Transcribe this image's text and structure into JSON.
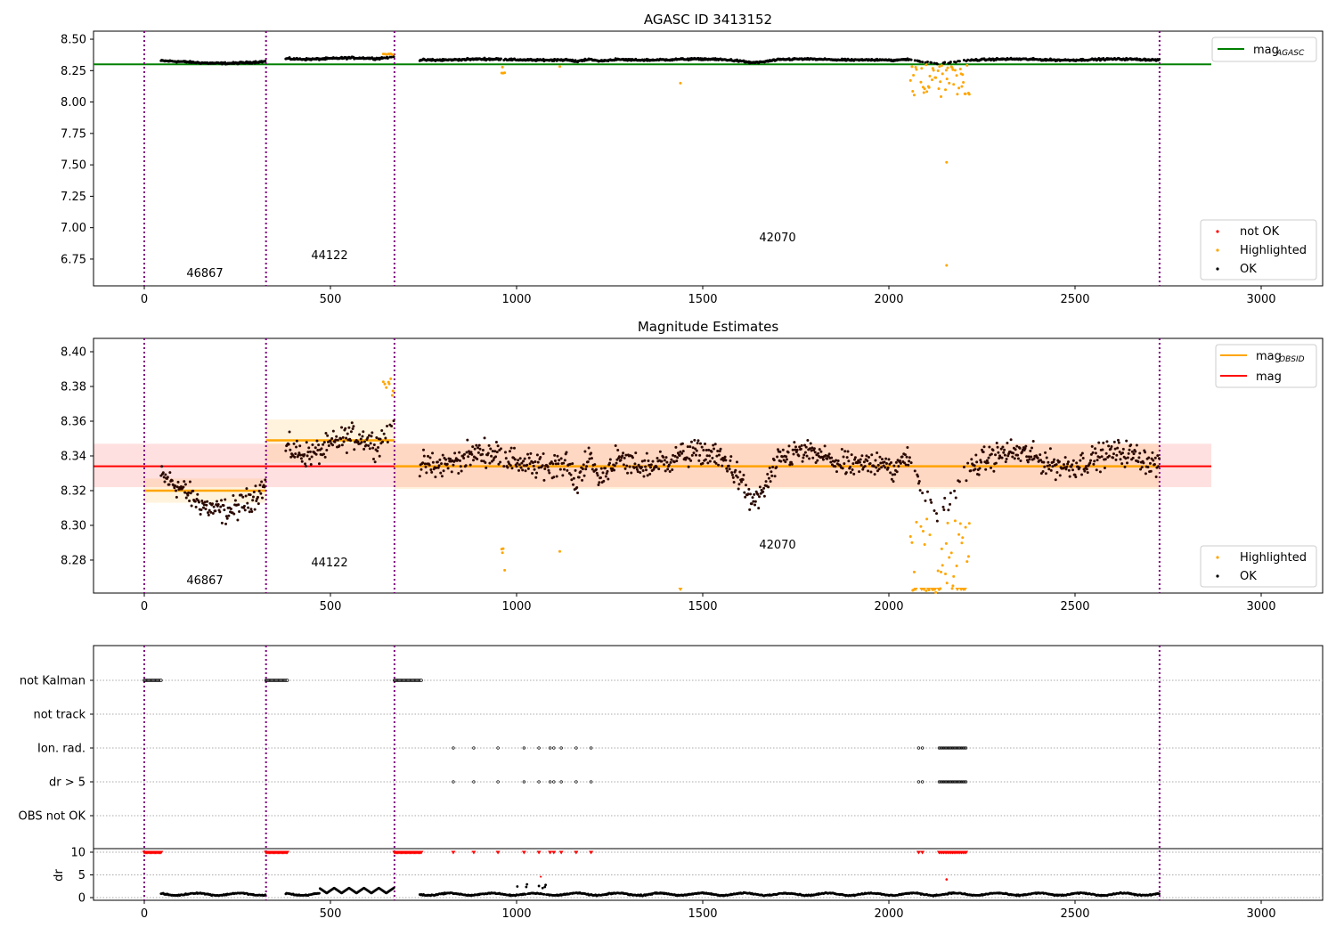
{
  "chart_data": [
    {
      "type": "scatter",
      "title": "AGASC ID 3413152",
      "xlim": [
        -136,
        3165
      ],
      "ylim": [
        6.537,
        8.564
      ],
      "xticks": [
        "0",
        "500",
        "1000",
        "1500",
        "2000",
        "2500",
        "3000"
      ],
      "xtick_values": [
        0,
        500,
        1000,
        1500,
        2000,
        2500,
        3000
      ],
      "yticks": [
        "6.75",
        "7.00",
        "7.25",
        "7.50",
        "7.75",
        "8.00",
        "8.25",
        "8.50"
      ],
      "ytick_values": [
        6.75,
        7.0,
        7.25,
        7.5,
        7.75,
        8.0,
        8.25,
        8.5
      ],
      "mag_agasc": 8.3,
      "legend_top": {
        "line": "mag",
        "sub": "AGASC",
        "color": "#008000"
      },
      "legend_bottom": [
        "not OK",
        "Highlighted",
        "OK"
      ],
      "outliers": [
        {
          "x": 2155,
          "y": 7.52
        },
        {
          "x": 2155,
          "y": 6.7
        },
        {
          "x": 1440,
          "y": 8.15
        }
      ]
    },
    {
      "type": "scatter",
      "title": "Magnitude Estimates",
      "xlim": [
        -136,
        3165
      ],
      "ylim": [
        8.261,
        8.4077
      ],
      "xticks": [
        "0",
        "500",
        "1000",
        "1500",
        "2000",
        "2500",
        "3000"
      ],
      "yticks": [
        "8.28",
        "8.30",
        "8.32",
        "8.34",
        "8.36",
        "8.38",
        "8.40"
      ],
      "ytick_values": [
        8.28,
        8.3,
        8.32,
        8.34,
        8.36,
        8.38,
        8.4
      ],
      "mag": 8.334,
      "mag_band": [
        8.322,
        8.347
      ],
      "legend_top": [
        {
          "line": "mag",
          "sub": "OBSID",
          "color": "#ffa500"
        },
        {
          "line": "mag",
          "color": "#ff0000"
        }
      ],
      "legend_bottom": [
        "Highlighted",
        "OK"
      ]
    },
    {
      "type": "scatter",
      "flag_labels": [
        "not Kalman",
        "not track",
        "Ion. rad.",
        "dr > 5",
        "OBS not OK"
      ],
      "dr_label": "dr",
      "dr_ticks": [
        "0",
        "5",
        "10"
      ],
      "dr_tick_values": [
        0,
        5,
        10
      ],
      "ion_rad_times": [
        830,
        885,
        950,
        1020,
        1060,
        1090,
        1100,
        1120,
        1160,
        1200,
        2080,
        2090
      ],
      "ion_rad_range": [
        2135,
        2210
      ],
      "xticks": [
        "0",
        "500",
        "1000",
        "1500",
        "2000",
        "2500",
        "3000"
      ]
    }
  ],
  "obsids": [
    {
      "id": "46867",
      "start": 0,
      "end": 327,
      "mag": 8.32,
      "band": [
        8.313,
        8.327
      ],
      "kalman_end": 45
    },
    {
      "id": "44122",
      "start": 327,
      "end": 672,
      "mag": 8.349,
      "band": [
        8.336,
        8.361
      ],
      "kalman_end": 385
    },
    {
      "id": "42070",
      "start": 672,
      "end": 2727,
      "mag": 8.334,
      "band": [
        8.321,
        8.347
      ],
      "kalman_end": 745
    }
  ],
  "colors": {
    "ok": "#000000",
    "highlighted": "#ffa500",
    "not_ok": "#ff0000",
    "agasc": "#008000",
    "obsid_line": "#800080"
  }
}
